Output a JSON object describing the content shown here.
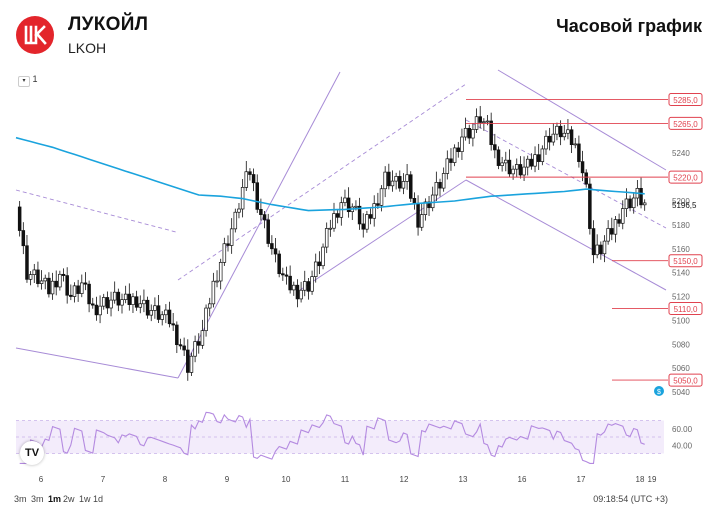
{
  "header": {
    "company": "ЛУКОЙЛ",
    "ticker": "LKOH",
    "chart_label": "Часовой график",
    "logo_icon": "lukoil-logo",
    "logo_color": "#e3252b"
  },
  "toolbar": {
    "compare_label": "1",
    "compare_icon": "chevron-down-icon"
  },
  "footer": {
    "timeframes": [
      {
        "label": "3m",
        "active": false
      },
      {
        "label": "3m",
        "active": false
      },
      {
        "label": "1m",
        "active": true
      },
      {
        "label": "2w",
        "active": false
      },
      {
        "label": "1w",
        "active": false
      },
      {
        "label": "1d",
        "active": false
      }
    ],
    "clock": "09:18:54 (UTC +3)",
    "tv_logo": "TV"
  },
  "chart_data": {
    "type": "candlestick",
    "x_ticks": [
      "6",
      "7",
      "8",
      "9",
      "10",
      "11",
      "12",
      "13",
      "16",
      "17",
      "18",
      "19"
    ],
    "y_range": [
      5035,
      5298
    ],
    "y_ticks": [
      5040,
      5060,
      5080,
      5100,
      5120,
      5140,
      5160,
      5180,
      5200,
      5220,
      5240,
      5260,
      5280
    ],
    "price_tag": "5196,5",
    "level_tags": [
      5285.0,
      5265.0,
      5220.0,
      5150.0,
      5110.0,
      5050.0
    ],
    "level_labels": [
      "5285,0",
      "5265,0",
      "5220,0",
      "5150,0",
      "5110,0",
      "5050,0"
    ],
    "level_color": "#e0424f",
    "ma_color": "#1aa3dd",
    "channel_color": "#a78bd6",
    "grid": false,
    "candle_close_path": [
      [
        0,
        5195
      ],
      [
        3,
        5140
      ],
      [
        6,
        5135
      ],
      [
        9,
        5125
      ],
      [
        12,
        5140
      ],
      [
        15,
        5120
      ],
      [
        18,
        5130
      ],
      [
        21,
        5110
      ],
      [
        24,
        5115
      ],
      [
        27,
        5118
      ],
      [
        30,
        5115
      ],
      [
        33,
        5118
      ],
      [
        36,
        5110
      ],
      [
        39,
        5105
      ],
      [
        42,
        5100
      ],
      [
        45,
        5080
      ],
      [
        47,
        5062
      ],
      [
        48,
        5070
      ],
      [
        51,
        5090
      ],
      [
        54,
        5130
      ],
      [
        57,
        5160
      ],
      [
        60,
        5185
      ],
      [
        62,
        5210
      ],
      [
        64,
        5225
      ],
      [
        66,
        5200
      ],
      [
        68,
        5180
      ],
      [
        71,
        5150
      ],
      [
        74,
        5130
      ],
      [
        77,
        5125
      ],
      [
        80,
        5130
      ],
      [
        83,
        5150
      ],
      [
        86,
        5180
      ],
      [
        89,
        5200
      ],
      [
        92,
        5195
      ],
      [
        94,
        5185
      ],
      [
        95,
        5175
      ],
      [
        98,
        5195
      ],
      [
        101,
        5220
      ],
      [
        104,
        5215
      ],
      [
        107,
        5215
      ],
      [
        110,
        5185
      ],
      [
        113,
        5200
      ],
      [
        116,
        5215
      ],
      [
        119,
        5235
      ],
      [
        122,
        5255
      ],
      [
        125,
        5260
      ],
      [
        127,
        5270
      ],
      [
        129,
        5260
      ],
      [
        131,
        5240
      ],
      [
        134,
        5230
      ],
      [
        137,
        5225
      ],
      [
        140,
        5228
      ],
      [
        143,
        5240
      ],
      [
        146,
        5255
      ],
      [
        149,
        5258
      ],
      [
        152,
        5250
      ],
      [
        154,
        5240
      ],
      [
        156,
        5210
      ],
      [
        158,
        5155
      ],
      [
        160,
        5160
      ],
      [
        163,
        5175
      ],
      [
        166,
        5195
      ],
      [
        168,
        5200
      ],
      [
        170,
        5205
      ],
      [
        172,
        5197
      ]
    ],
    "ma_path": [
      [
        0,
        5253
      ],
      [
        10,
        5245
      ],
      [
        20,
        5235
      ],
      [
        30,
        5225
      ],
      [
        40,
        5215
      ],
      [
        50,
        5205
      ],
      [
        56,
        5204
      ],
      [
        62,
        5202
      ],
      [
        70,
        5197
      ],
      [
        80,
        5192
      ],
      [
        90,
        5193
      ],
      [
        100,
        5195
      ],
      [
        110,
        5198
      ],
      [
        120,
        5200
      ],
      [
        130,
        5204
      ],
      [
        140,
        5206
      ],
      [
        150,
        5208
      ],
      [
        156,
        5210
      ],
      [
        164,
        5208
      ],
      [
        172,
        5206
      ]
    ],
    "rsi": {
      "y_ticks": [
        40,
        60
      ],
      "levels": [
        30,
        50,
        70
      ],
      "color": "#b48ae0"
    }
  }
}
